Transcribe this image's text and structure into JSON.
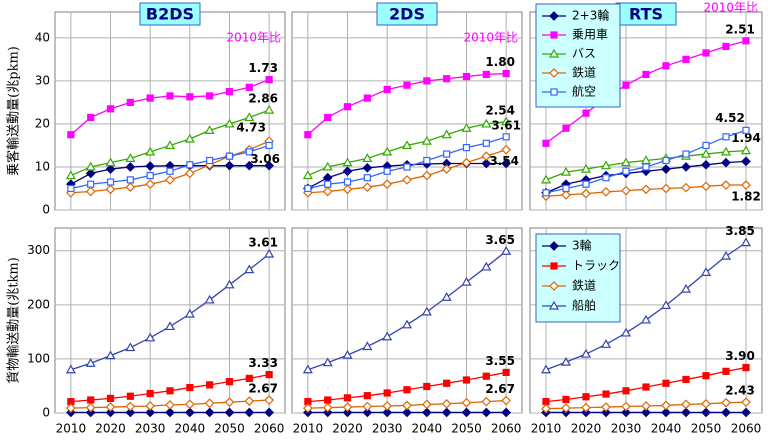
{
  "chart_data": [
    {
      "type": "line",
      "title": "B2DS",
      "ylabel": "乗客輸送動量(兆pkm)",
      "note": "2010年比",
      "x": [
        2010,
        2015,
        2020,
        2025,
        2030,
        2035,
        2040,
        2045,
        2050,
        2055,
        2060
      ],
      "xlim": [
        2006,
        2064
      ],
      "xticks": [
        2010,
        2020,
        2030,
        2040,
        2050,
        2060
      ],
      "ylim": [
        0,
        46
      ],
      "yticks": [
        0,
        10,
        20,
        30,
        40
      ],
      "grid": true,
      "series": [
        {
          "color": "#000080",
          "marker": "diamond",
          "filled": true,
          "values": [
            6,
            8.5,
            9.5,
            10,
            10.2,
            10.3,
            10.3,
            10.3,
            10.3,
            10.3,
            10.3
          ]
        },
        {
          "color": "#ff00ff",
          "marker": "square",
          "filled": true,
          "values": [
            17.5,
            21.5,
            23.5,
            25,
            26,
            26.5,
            26.3,
            26.5,
            27.5,
            28.5,
            30.3
          ],
          "ratio_label": "1.73"
        },
        {
          "color": "#33aa00",
          "marker": "triangle",
          "filled": false,
          "values": [
            8,
            10,
            11,
            12,
            13.5,
            15,
            16.5,
            18.5,
            20,
            21.5,
            23.2
          ],
          "ratio_label": "2.86"
        },
        {
          "color": "#dd6600",
          "marker": "diamond",
          "filled": false,
          "values": [
            4,
            4.3,
            4.8,
            5.3,
            6,
            7,
            8.5,
            10.5,
            12.5,
            14,
            16
          ],
          "ratio_label": "4.73"
        },
        {
          "color": "#3366ff",
          "marker": "square",
          "filled": false,
          "values": [
            5,
            6,
            6.5,
            7,
            8,
            9,
            10.5,
            11.5,
            12.5,
            13.5,
            15
          ],
          "ratio_label": "3.06"
        }
      ]
    },
    {
      "type": "line",
      "title": "2DS",
      "note": "2010年比",
      "x": [
        2010,
        2015,
        2020,
        2025,
        2030,
        2035,
        2040,
        2045,
        2050,
        2055,
        2060
      ],
      "xlim": [
        2006,
        2064
      ],
      "xticks": [
        2010,
        2020,
        2030,
        2040,
        2050,
        2060
      ],
      "ylim": [
        0,
        46
      ],
      "yticks": [
        0,
        10,
        20,
        30,
        40
      ],
      "grid": true,
      "series": [
        {
          "color": "#000080",
          "marker": "diamond",
          "filled": true,
          "values": [
            5,
            7.5,
            9,
            9.8,
            10.2,
            10.5,
            10.7,
            10.8,
            10.8,
            10.8,
            10.8
          ]
        },
        {
          "color": "#ff00ff",
          "marker": "square",
          "filled": true,
          "values": [
            17.5,
            21.5,
            24,
            26,
            28,
            29,
            30,
            30.5,
            31,
            31.5,
            31.7
          ],
          "ratio_label": "1.80"
        },
        {
          "color": "#33aa00",
          "marker": "triangle",
          "filled": false,
          "values": [
            8,
            10,
            11,
            12,
            13.5,
            15,
            16,
            17.5,
            19,
            20,
            20.5
          ],
          "ratio_label": "2.54"
        },
        {
          "color": "#dd6600",
          "marker": "diamond",
          "filled": false,
          "values": [
            4,
            4.3,
            4.8,
            5.3,
            6,
            7,
            8,
            9.5,
            11,
            12.5,
            14
          ],
          "ratio_label": "3.54"
        },
        {
          "color": "#3366ff",
          "marker": "square",
          "filled": false,
          "values": [
            5,
            6,
            6.5,
            7.5,
            9,
            10,
            11.5,
            13,
            14.5,
            15.5,
            17
          ],
          "ratio_label": "3.61"
        }
      ]
    },
    {
      "type": "line",
      "title": "RTS",
      "note": "2010年比",
      "legend": "upper left",
      "x": [
        2010,
        2015,
        2020,
        2025,
        2030,
        2035,
        2040,
        2045,
        2050,
        2055,
        2060
      ],
      "xlim": [
        2006,
        2064
      ],
      "xticks": [
        2010,
        2020,
        2030,
        2040,
        2050,
        2060
      ],
      "ylim": [
        0,
        46
      ],
      "yticks": [
        0,
        10,
        20,
        30,
        40
      ],
      "grid": true,
      "series": [
        {
          "name": "2+3輪",
          "color": "#000080",
          "marker": "diamond",
          "filled": true,
          "values": [
            4,
            6,
            7,
            8,
            8.5,
            9,
            9.5,
            10,
            10.5,
            11,
            11.3
          ]
        },
        {
          "name": "乗用車",
          "color": "#ff00ff",
          "marker": "square",
          "filled": true,
          "values": [
            15.5,
            19,
            22.5,
            26,
            29,
            31.5,
            33.5,
            35,
            36.5,
            38,
            39.3
          ],
          "ratio_label": "2.51"
        },
        {
          "name": "バス",
          "color": "#33aa00",
          "marker": "triangle",
          "filled": false,
          "values": [
            7,
            8.8,
            9.5,
            10.3,
            11,
            11.5,
            12,
            12.5,
            13,
            13.5,
            13.8
          ],
          "ratio_label": "1.94"
        },
        {
          "name": "鉄道",
          "color": "#dd6600",
          "marker": "diamond",
          "filled": false,
          "values": [
            3.2,
            3.5,
            3.8,
            4.2,
            4.5,
            4.8,
            5,
            5.2,
            5.5,
            5.8,
            5.8
          ],
          "ratio_label": "1.82"
        },
        {
          "name": "航空",
          "color": "#3366ff",
          "marker": "square",
          "filled": false,
          "values": [
            4,
            5,
            6,
            7.5,
            9,
            10,
            11.5,
            13,
            15,
            17,
            18.5
          ],
          "ratio_label": "4.52"
        }
      ]
    },
    {
      "type": "line",
      "ylabel": "貨物輸送動量(兆tkm)",
      "x": [
        2010,
        2015,
        2020,
        2025,
        2030,
        2035,
        2040,
        2045,
        2050,
        2055,
        2060
      ],
      "xlim": [
        2006,
        2064
      ],
      "xticks": [
        2010,
        2020,
        2030,
        2040,
        2050,
        2060
      ],
      "ylim": [
        0,
        342
      ],
      "yticks": [
        0,
        100,
        200,
        300
      ],
      "grid": true,
      "series": [
        {
          "color": "#000080",
          "marker": "diamond",
          "filled": true,
          "values": [
            1,
            1,
            1,
            1,
            1,
            1,
            1,
            1,
            1,
            1,
            1
          ]
        },
        {
          "color": "#ff0000",
          "marker": "square",
          "filled": true,
          "values": [
            21,
            24,
            27,
            31,
            36,
            41,
            47,
            52,
            58,
            64,
            71
          ],
          "ratio_label": "3.33"
        },
        {
          "color": "#dd6600",
          "marker": "diamond",
          "filled": false,
          "values": [
            9,
            10,
            11,
            12,
            13,
            15,
            16,
            18,
            20,
            22,
            24
          ],
          "ratio_label": "2.67"
        },
        {
          "color": "#3344aa",
          "marker": "triangle",
          "filled": false,
          "values": [
            80,
            92,
            106,
            121,
            139,
            160,
            183,
            209,
            237,
            265,
            294
          ],
          "ratio_label": "3.61"
        }
      ]
    },
    {
      "type": "line",
      "x": [
        2010,
        2015,
        2020,
        2025,
        2030,
        2035,
        2040,
        2045,
        2050,
        2055,
        2060
      ],
      "xlim": [
        2006,
        2064
      ],
      "xticks": [
        2010,
        2020,
        2030,
        2040,
        2050,
        2060
      ],
      "ylim": [
        0,
        342
      ],
      "yticks": [
        0,
        100,
        200,
        300
      ],
      "grid": true,
      "series": [
        {
          "color": "#000080",
          "marker": "diamond",
          "filled": true,
          "values": [
            1,
            1,
            1,
            1,
            1,
            1,
            1,
            1,
            1,
            1,
            1
          ]
        },
        {
          "color": "#ff0000",
          "marker": "square",
          "filled": true,
          "values": [
            21,
            24,
            28,
            32,
            37,
            43,
            49,
            55,
            61,
            68,
            75
          ],
          "ratio_label": "3.55"
        },
        {
          "color": "#dd6600",
          "marker": "diamond",
          "filled": false,
          "values": [
            9,
            10,
            11,
            12,
            13,
            14,
            16,
            17,
            19,
            21,
            23
          ],
          "ratio_label": "2.67"
        },
        {
          "color": "#3344aa",
          "marker": "triangle",
          "filled": false,
          "values": [
            80,
            93,
            107,
            123,
            141,
            163,
            187,
            214,
            242,
            270,
            299
          ],
          "ratio_label": "3.65"
        }
      ]
    },
    {
      "type": "line",
      "legend": "upper left",
      "x": [
        2010,
        2015,
        2020,
        2025,
        2030,
        2035,
        2040,
        2045,
        2050,
        2055,
        2060
      ],
      "xlim": [
        2006,
        2064
      ],
      "xticks": [
        2010,
        2020,
        2030,
        2040,
        2050,
        2060
      ],
      "ylim": [
        0,
        342
      ],
      "yticks": [
        0,
        100,
        200,
        300
      ],
      "grid": true,
      "series": [
        {
          "name": "3輪",
          "color": "#000080",
          "marker": "diamond",
          "filled": true,
          "values": [
            1,
            1,
            1,
            1,
            1,
            1,
            1,
            1,
            1,
            1,
            1
          ]
        },
        {
          "name": "トラック",
          "color": "#ff0000",
          "marker": "square",
          "filled": true,
          "values": [
            21,
            25,
            30,
            35,
            41,
            48,
            55,
            62,
            69,
            77,
            84
          ],
          "ratio_label": "3.90"
        },
        {
          "name": "鉄道",
          "color": "#dd6600",
          "marker": "diamond",
          "filled": false,
          "values": [
            8,
            9,
            10,
            11,
            12,
            13,
            14,
            16,
            17,
            19,
            20
          ],
          "ratio_label": "2.43"
        },
        {
          "name": "船舶",
          "color": "#3344aa",
          "marker": "triangle",
          "filled": false,
          "values": [
            80,
            94,
            109,
            127,
            148,
            172,
            199,
            229,
            260,
            290,
            315
          ],
          "ratio_label": "3.85"
        }
      ]
    }
  ]
}
